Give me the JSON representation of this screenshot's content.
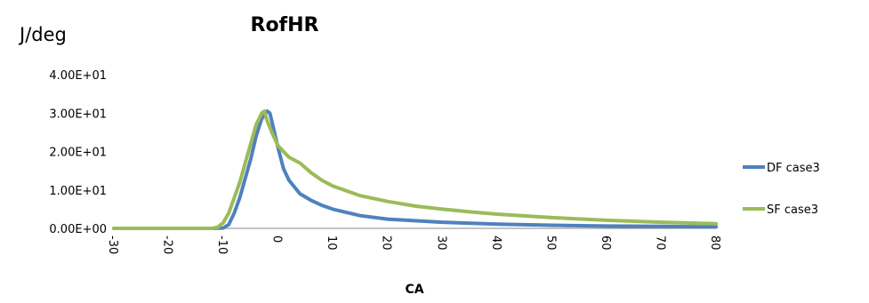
{
  "chart_data": {
    "type": "line",
    "title": "RofHR",
    "ylabel": "J/deg",
    "xlabel": "CA",
    "xlim": [
      -30,
      80
    ],
    "ylim": [
      0,
      40
    ],
    "x_ticks": [
      "-30",
      "-20",
      "-10",
      "0",
      "10",
      "20",
      "30",
      "40",
      "50",
      "60",
      "70",
      "80"
    ],
    "y_ticks": [
      "0.00E+00",
      "1.00E+01",
      "2.00E+01",
      "3.00E+01",
      "4.00E+01"
    ],
    "x_tick_values": [
      -30,
      -20,
      -10,
      0,
      10,
      20,
      30,
      40,
      50,
      60,
      70,
      80
    ],
    "y_tick_values": [
      0,
      10,
      20,
      30,
      40
    ],
    "grid": false,
    "legend_position": "right",
    "series": [
      {
        "name": "DF case3",
        "color": "#4f81bd",
        "points": [
          [
            -30,
            0
          ],
          [
            -12,
            0
          ],
          [
            -10,
            0.1
          ],
          [
            -9,
            1
          ],
          [
            -8,
            4
          ],
          [
            -7,
            8
          ],
          [
            -6,
            13
          ],
          [
            -5,
            18
          ],
          [
            -4,
            24
          ],
          [
            -3,
            28.5
          ],
          [
            -2,
            30.5
          ],
          [
            -1.5,
            30
          ],
          [
            -1,
            27
          ],
          [
            0,
            21
          ],
          [
            1,
            15.5
          ],
          [
            2,
            12.5
          ],
          [
            4,
            9
          ],
          [
            6,
            7.3
          ],
          [
            8,
            6
          ],
          [
            10,
            5
          ],
          [
            15,
            3.3
          ],
          [
            20,
            2.4
          ],
          [
            30,
            1.6
          ],
          [
            40,
            1.1
          ],
          [
            50,
            0.8
          ],
          [
            60,
            0.6
          ],
          [
            70,
            0.5
          ],
          [
            80,
            0.4
          ]
        ]
      },
      {
        "name": "SF case3",
        "color": "#9bbb59",
        "points": [
          [
            -30,
            0
          ],
          [
            -12,
            0
          ],
          [
            -11,
            0.3
          ],
          [
            -10,
            1.5
          ],
          [
            -9,
            4
          ],
          [
            -8,
            8
          ],
          [
            -7,
            12
          ],
          [
            -6,
            17
          ],
          [
            -5,
            22
          ],
          [
            -4,
            27
          ],
          [
            -3,
            30
          ],
          [
            -2.5,
            30.5
          ],
          [
            -2,
            28
          ],
          [
            -1,
            24.5
          ],
          [
            0,
            21.5
          ],
          [
            2,
            18.5
          ],
          [
            4,
            17
          ],
          [
            6,
            14.5
          ],
          [
            8,
            12.5
          ],
          [
            10,
            11
          ],
          [
            15,
            8.5
          ],
          [
            20,
            7
          ],
          [
            25,
            5.8
          ],
          [
            30,
            5
          ],
          [
            35,
            4.3
          ],
          [
            40,
            3.7
          ],
          [
            50,
            2.8
          ],
          [
            60,
            2.1
          ],
          [
            70,
            1.6
          ],
          [
            80,
            1.2
          ]
        ]
      }
    ]
  }
}
